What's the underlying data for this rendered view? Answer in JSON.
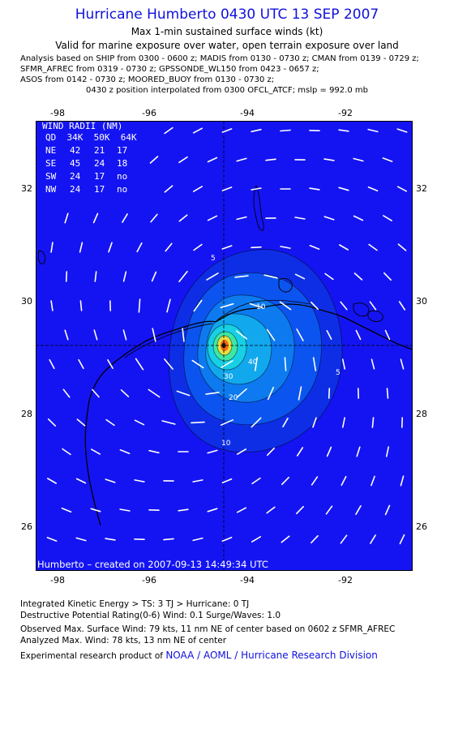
{
  "header": {
    "title": "Hurricane Humberto 0430 UTC 13 SEP 2007",
    "subtitle1": "Max 1-min sustained surface winds (kt)",
    "subtitle2": "Valid for marine exposure over water, open terrain exposure over land"
  },
  "analysis": [
    "Analysis based on  SHIP from 0300 - 0600 z;  MADIS from 0130 - 0730 z;  CMAN from 0139 - 0729 z;",
    "SFMR_AFREC from 0319 - 0730 z;  GPSSONDE_WL150 from 0423 - 0657 z;",
    "ASOS from 0142 - 0730 z;  MOORED_BUOY from 0130 - 0730 z;"
  ],
  "position_note": "0430 z position interpolated from 0300 OFCL_ATCF; mslp = 992.0 mb",
  "map": {
    "lon_ticks": [
      "-98",
      "-96",
      "-94",
      "-92"
    ],
    "lat_ticks": [
      "32",
      "30",
      "28",
      "26"
    ],
    "credit": "Humberto – created on 2007-09-13 14:49:34 UTC",
    "contour_labels": [
      "5",
      "10",
      "20",
      "30",
      "40",
      "5",
      "10"
    ],
    "colors": {
      "ocean_blue": "#1414f2",
      "ring_10": "#0e2ee6",
      "ring_20": "#0c54f0",
      "ring_30": "#0d7af0",
      "ring_40": "#12a8ee",
      "ring_50": "#18d0e6",
      "ring_60": "#3de8a6",
      "ring_64": "#e8e040",
      "core": "#ff6a10",
      "vectors": "#ffffff"
    },
    "wind_radii": {
      "title": "WIND RADII (NM)",
      "header": "QD  34K  50K  64K",
      "rows": [
        {
          "q": "NE",
          "r34": "42",
          "r50": "21",
          "r64": "17"
        },
        {
          "q": "SE",
          "r34": "45",
          "r50": "24",
          "r64": "18"
        },
        {
          "q": "SW",
          "r34": "24",
          "r50": "17",
          "r64": "no"
        },
        {
          "q": "NW",
          "r34": "24",
          "r50": "17",
          "r64": "no"
        }
      ]
    }
  },
  "footer": {
    "ike": "Integrated Kinetic Energy > TS: 3 TJ   > Hurricane: 0 TJ",
    "dpr": "Destructive Potential Rating(0-6)   Wind: 0.1 Surge/Waves: 1.0",
    "observed": "Observed Max. Surface Wind: 79 kts, 11 nm NE of center based on 0602 z SFMR_AFREC",
    "analyzed": "Analyzed Max. Wind: 78 kts, 13 nm NE of center",
    "product": "Experimental research product of ",
    "org": "NOAA / AOML / Hurricane Research Division"
  }
}
